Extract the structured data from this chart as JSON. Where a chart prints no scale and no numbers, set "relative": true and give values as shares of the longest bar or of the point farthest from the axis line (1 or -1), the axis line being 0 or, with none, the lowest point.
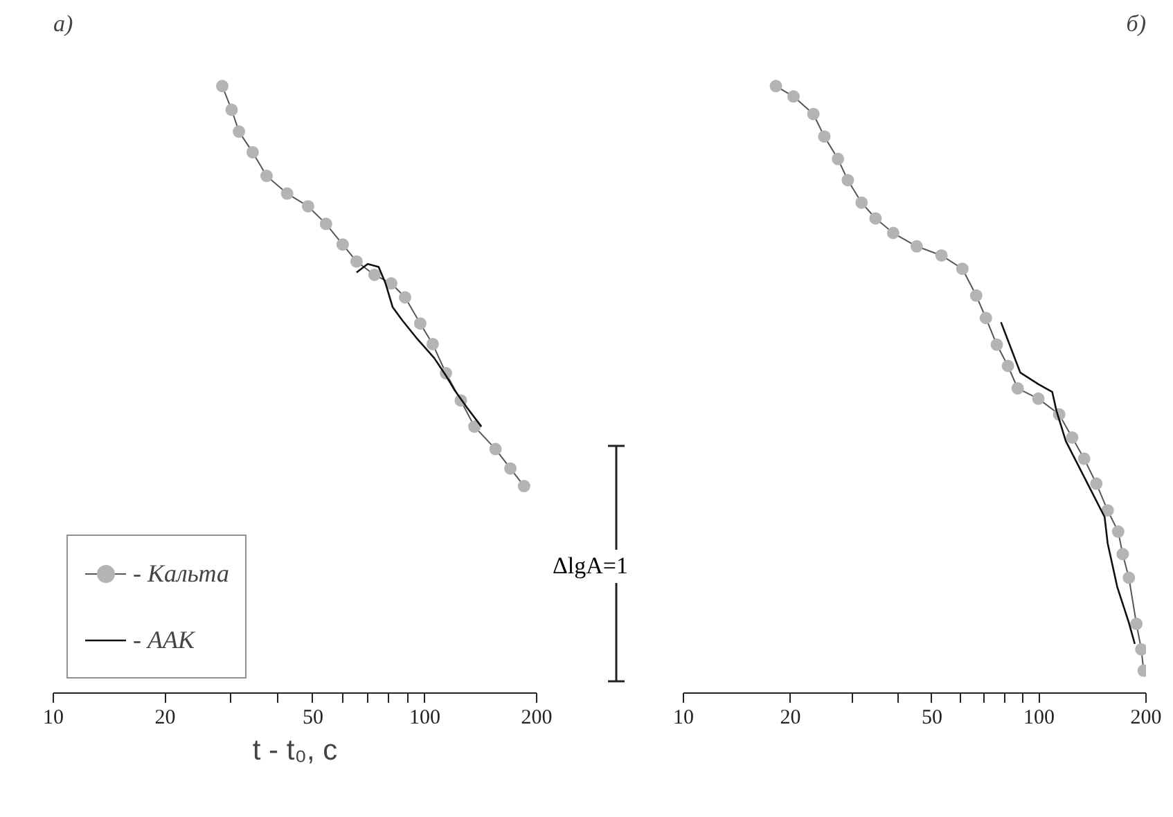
{
  "chart_data": [
    {
      "type": "line",
      "title": "а)",
      "xlabel": "t - t₀, с",
      "relative": true,
      "log": "x",
      "xlim": [
        10,
        200
      ],
      "xticks": [
        10,
        20,
        {
          "value": 30,
          "label": null
        },
        {
          "value": 40,
          "label": null
        },
        50,
        {
          "value": 60,
          "label": null
        },
        {
          "value": 70,
          "label": null
        },
        {
          "value": 80,
          "label": null
        },
        {
          "value": 90,
          "label": null
        },
        100,
        200
      ],
      "grid": false,
      "legend": "bottom left",
      "annotations": [
        "ΔlgA=1"
      ],
      "series": [
        {
          "name": "- Кальта",
          "color": "#b4b4b4",
          "marker": "circle",
          "x": [
            28.5,
            30.2,
            31.6,
            34.4,
            37.5,
            42.6,
            48.5,
            54.2,
            60.1,
            65.5,
            73.2,
            81.2,
            88.5,
            97.2,
            105,
            114,
            125,
            136,
            155,
            170,
            185
          ],
          "values": [
            1.0,
            0.961,
            0.925,
            0.891,
            0.852,
            0.823,
            0.802,
            0.773,
            0.739,
            0.711,
            0.689,
            0.675,
            0.652,
            0.609,
            0.575,
            0.527,
            0.482,
            0.439,
            0.402,
            0.37,
            0.341
          ]
        },
        {
          "name": "- ААК",
          "color": "#111111",
          "marker": "none",
          "x": [
            65.5,
            70.2,
            75.1,
            78.4,
            81.9,
            87.0,
            94.7,
            106,
            114,
            120,
            130,
            142
          ],
          "values": [
            0.693,
            0.707,
            0.702,
            0.675,
            0.636,
            0.614,
            0.586,
            0.552,
            0.523,
            0.5,
            0.47,
            0.439
          ]
        }
      ]
    },
    {
      "type": "line",
      "title": "б)",
      "relative": true,
      "log": "x",
      "xlim": [
        10,
        200
      ],
      "xticks": [
        10,
        20,
        {
          "value": 30,
          "label": null
        },
        {
          "value": 40,
          "label": null
        },
        50,
        {
          "value": 60,
          "label": null
        },
        {
          "value": 70,
          "label": null
        },
        {
          "value": 80,
          "label": null
        },
        {
          "value": 90,
          "label": null
        },
        100,
        200
      ],
      "grid": false,
      "series": [
        {
          "color": "#b4b4b4",
          "marker": "circle",
          "x": [
            18.2,
            20.4,
            23.2,
            24.9,
            27.2,
            29.0,
            31.7,
            34.7,
            38.9,
            45.3,
            53.2,
            60.9,
            66.6,
            70.9,
            76.1,
            81.8,
            87.1,
            99.6,
            114,
            124,
            134,
            145,
            156,
            167,
            172,
            179,
            188,
            194,
            197
          ],
          "values": [
            1.0,
            0.983,
            0.954,
            0.917,
            0.88,
            0.845,
            0.808,
            0.782,
            0.758,
            0.736,
            0.721,
            0.699,
            0.655,
            0.618,
            0.574,
            0.539,
            0.502,
            0.485,
            0.459,
            0.421,
            0.386,
            0.345,
            0.301,
            0.266,
            0.229,
            0.19,
            0.114,
            0.072,
            0.037
          ]
        },
        {
          "color": "#111111",
          "marker": "none",
          "x": [
            78.2,
            88.6,
            99.6,
            109,
            112,
            119,
            134,
            153,
            156,
            166,
            179,
            186
          ],
          "values": [
            0.611,
            0.528,
            0.509,
            0.496,
            0.465,
            0.415,
            0.356,
            0.29,
            0.247,
            0.175,
            0.116,
            0.081
          ]
        }
      ]
    }
  ]
}
